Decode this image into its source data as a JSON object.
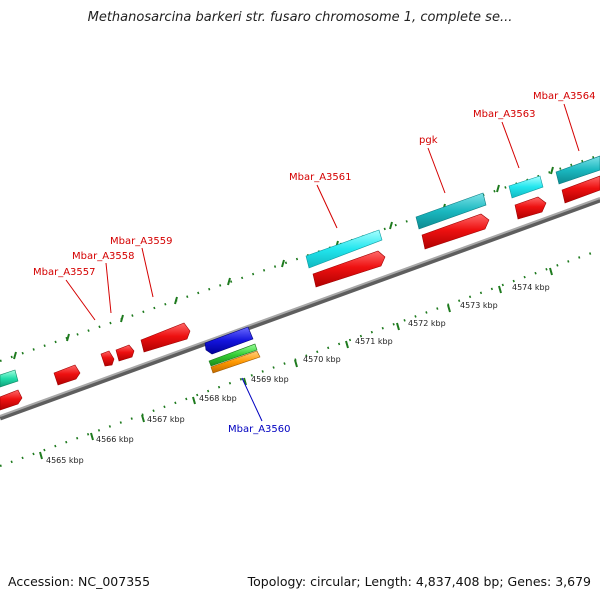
{
  "title": "Methanosarcina barkeri str. fusaro chromosome 1, complete se...",
  "footer": {
    "accession": "Accession: NC_007355",
    "summary": "Topology: circular; Length: 4,837,408 bp; Genes: 3,679"
  },
  "colors": {
    "backbone": "#8c8c8c",
    "tick": "#1e7a1e",
    "label_red": "#d40000",
    "label_blue": "#0000c0",
    "cds_red": "#ee1111",
    "cyan": "#22e6ee",
    "teal": "#1ab8c0",
    "blue": "#1414dd",
    "green": "#33cc33",
    "orange": "#ff9900",
    "mint": "#22ddaa"
  },
  "scale_labels": [
    "4565 kbp",
    "4566 kbp",
    "4567 kbp",
    "4568 kbp",
    "4569 kbp",
    "4570 kbp",
    "4571 kbp",
    "4572 kbp",
    "4573 kbp",
    "4574 kbp"
  ],
  "gene_labels": [
    {
      "text": "Mbar_A3557",
      "color": "#d40000"
    },
    {
      "text": "Mbar_A3558",
      "color": "#d40000"
    },
    {
      "text": "Mbar_A3559",
      "color": "#d40000"
    },
    {
      "text": "Mbar_A3561",
      "color": "#d40000"
    },
    {
      "text": "pgk",
      "color": "#d40000"
    },
    {
      "text": "Mbar_A3563",
      "color": "#d40000"
    },
    {
      "text": "Mbar_A3564",
      "color": "#d40000"
    },
    {
      "text": "Mbar_A3560",
      "color": "#0000c0"
    }
  ]
}
